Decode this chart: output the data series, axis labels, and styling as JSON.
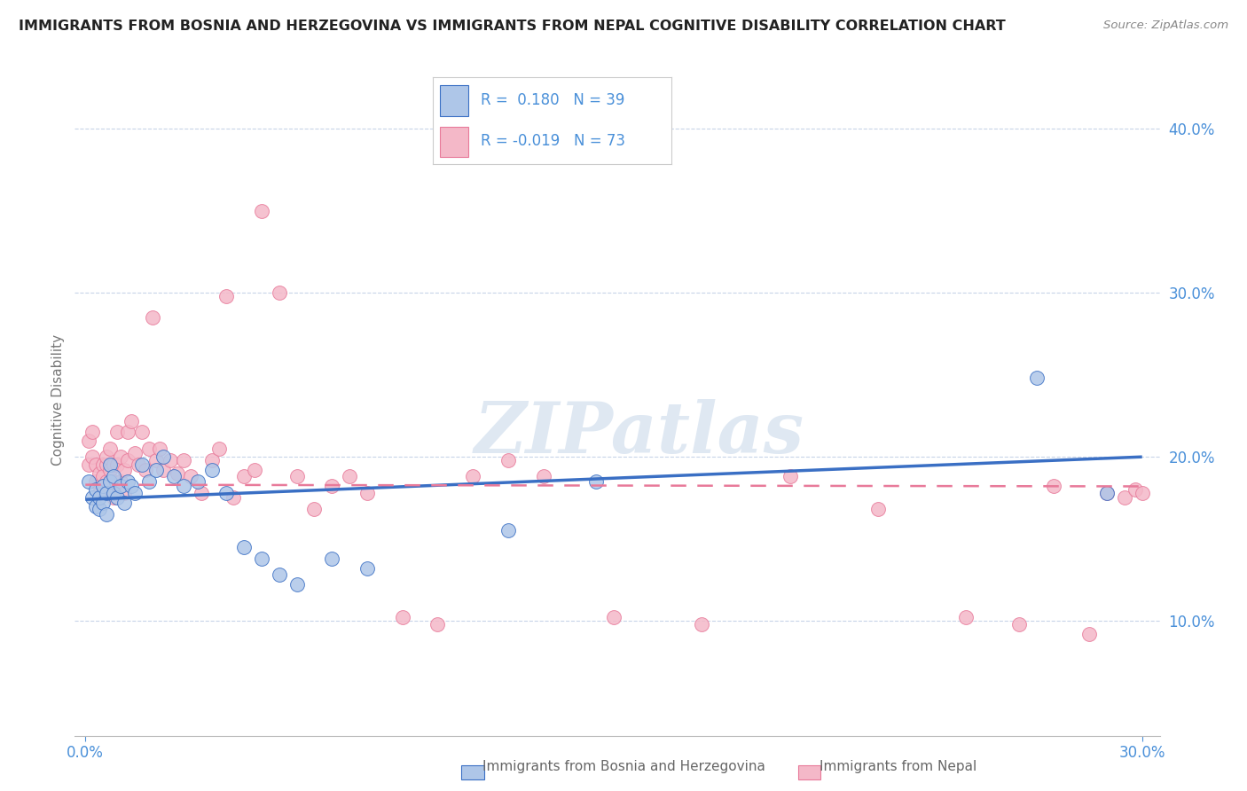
{
  "title": "IMMIGRANTS FROM BOSNIA AND HERZEGOVINA VS IMMIGRANTS FROM NEPAL COGNITIVE DISABILITY CORRELATION CHART",
  "source": "Source: ZipAtlas.com",
  "xlabel_bosnia": "Immigrants from Bosnia and Herzegovina",
  "xlabel_nepal": "Immigrants from Nepal",
  "ylabel": "Cognitive Disability",
  "watermark": "ZIPatlas",
  "xlim": [
    -0.003,
    0.305
  ],
  "ylim": [
    0.03,
    0.44
  ],
  "yticks": [
    0.1,
    0.2,
    0.3,
    0.4
  ],
  "xticks_show": [
    0.0,
    0.3
  ],
  "xticks_grid": [
    0.1,
    0.2,
    0.3
  ],
  "legend_bosnia_R": "0.180",
  "legend_bosnia_N": "39",
  "legend_nepal_R": "-0.019",
  "legend_nepal_N": "73",
  "color_bosnia": "#aec6e8",
  "color_nepal": "#f4b8c8",
  "color_trend_bosnia": "#3a6fc4",
  "color_trend_nepal": "#e87a9a",
  "color_axis_labels": "#4a90d9",
  "color_legend_text": "#4a90d9",
  "color_title": "#222222",
  "color_grid": "#c8d4e8",
  "bosnia_x": [
    0.001,
    0.002,
    0.003,
    0.003,
    0.004,
    0.004,
    0.005,
    0.005,
    0.006,
    0.006,
    0.007,
    0.007,
    0.008,
    0.008,
    0.009,
    0.01,
    0.011,
    0.012,
    0.013,
    0.014,
    0.016,
    0.018,
    0.02,
    0.022,
    0.025,
    0.028,
    0.032,
    0.036,
    0.04,
    0.045,
    0.05,
    0.055,
    0.06,
    0.07,
    0.08,
    0.12,
    0.145,
    0.27,
    0.29
  ],
  "bosnia_y": [
    0.185,
    0.175,
    0.18,
    0.17,
    0.168,
    0.175,
    0.182,
    0.172,
    0.165,
    0.178,
    0.195,
    0.185,
    0.188,
    0.178,
    0.175,
    0.182,
    0.172,
    0.185,
    0.182,
    0.178,
    0.195,
    0.185,
    0.192,
    0.2,
    0.188,
    0.182,
    0.185,
    0.192,
    0.178,
    0.145,
    0.138,
    0.128,
    0.122,
    0.138,
    0.132,
    0.155,
    0.185,
    0.248,
    0.178
  ],
  "nepal_x": [
    0.001,
    0.001,
    0.002,
    0.002,
    0.003,
    0.003,
    0.004,
    0.004,
    0.005,
    0.005,
    0.005,
    0.006,
    0.006,
    0.006,
    0.007,
    0.007,
    0.007,
    0.008,
    0.008,
    0.008,
    0.009,
    0.009,
    0.01,
    0.01,
    0.011,
    0.011,
    0.012,
    0.012,
    0.013,
    0.014,
    0.015,
    0.016,
    0.017,
    0.018,
    0.019,
    0.02,
    0.021,
    0.022,
    0.024,
    0.026,
    0.028,
    0.03,
    0.033,
    0.036,
    0.038,
    0.04,
    0.042,
    0.045,
    0.048,
    0.05,
    0.055,
    0.06,
    0.065,
    0.07,
    0.075,
    0.08,
    0.09,
    0.1,
    0.11,
    0.12,
    0.13,
    0.15,
    0.175,
    0.2,
    0.225,
    0.25,
    0.265,
    0.275,
    0.285,
    0.29,
    0.295,
    0.298,
    0.3
  ],
  "nepal_y": [
    0.195,
    0.21,
    0.2,
    0.215,
    0.185,
    0.195,
    0.178,
    0.19,
    0.195,
    0.188,
    0.178,
    0.195,
    0.185,
    0.2,
    0.192,
    0.178,
    0.205,
    0.185,
    0.195,
    0.175,
    0.215,
    0.195,
    0.185,
    0.2,
    0.192,
    0.178,
    0.215,
    0.198,
    0.222,
    0.202,
    0.195,
    0.215,
    0.192,
    0.205,
    0.285,
    0.198,
    0.205,
    0.192,
    0.198,
    0.19,
    0.198,
    0.188,
    0.178,
    0.198,
    0.205,
    0.298,
    0.175,
    0.188,
    0.192,
    0.35,
    0.3,
    0.188,
    0.168,
    0.182,
    0.188,
    0.178,
    0.102,
    0.098,
    0.188,
    0.198,
    0.188,
    0.102,
    0.098,
    0.188,
    0.168,
    0.102,
    0.098,
    0.182,
    0.092,
    0.178,
    0.175,
    0.18,
    0.178
  ],
  "trend_bosnia_x0": 0.0,
  "trend_bosnia_x1": 0.3,
  "trend_bosnia_y0": 0.174,
  "trend_bosnia_y1": 0.2,
  "trend_nepal_x0": 0.0,
  "trend_nepal_x1": 0.3,
  "trend_nepal_y0": 0.183,
  "trend_nepal_y1": 0.182
}
